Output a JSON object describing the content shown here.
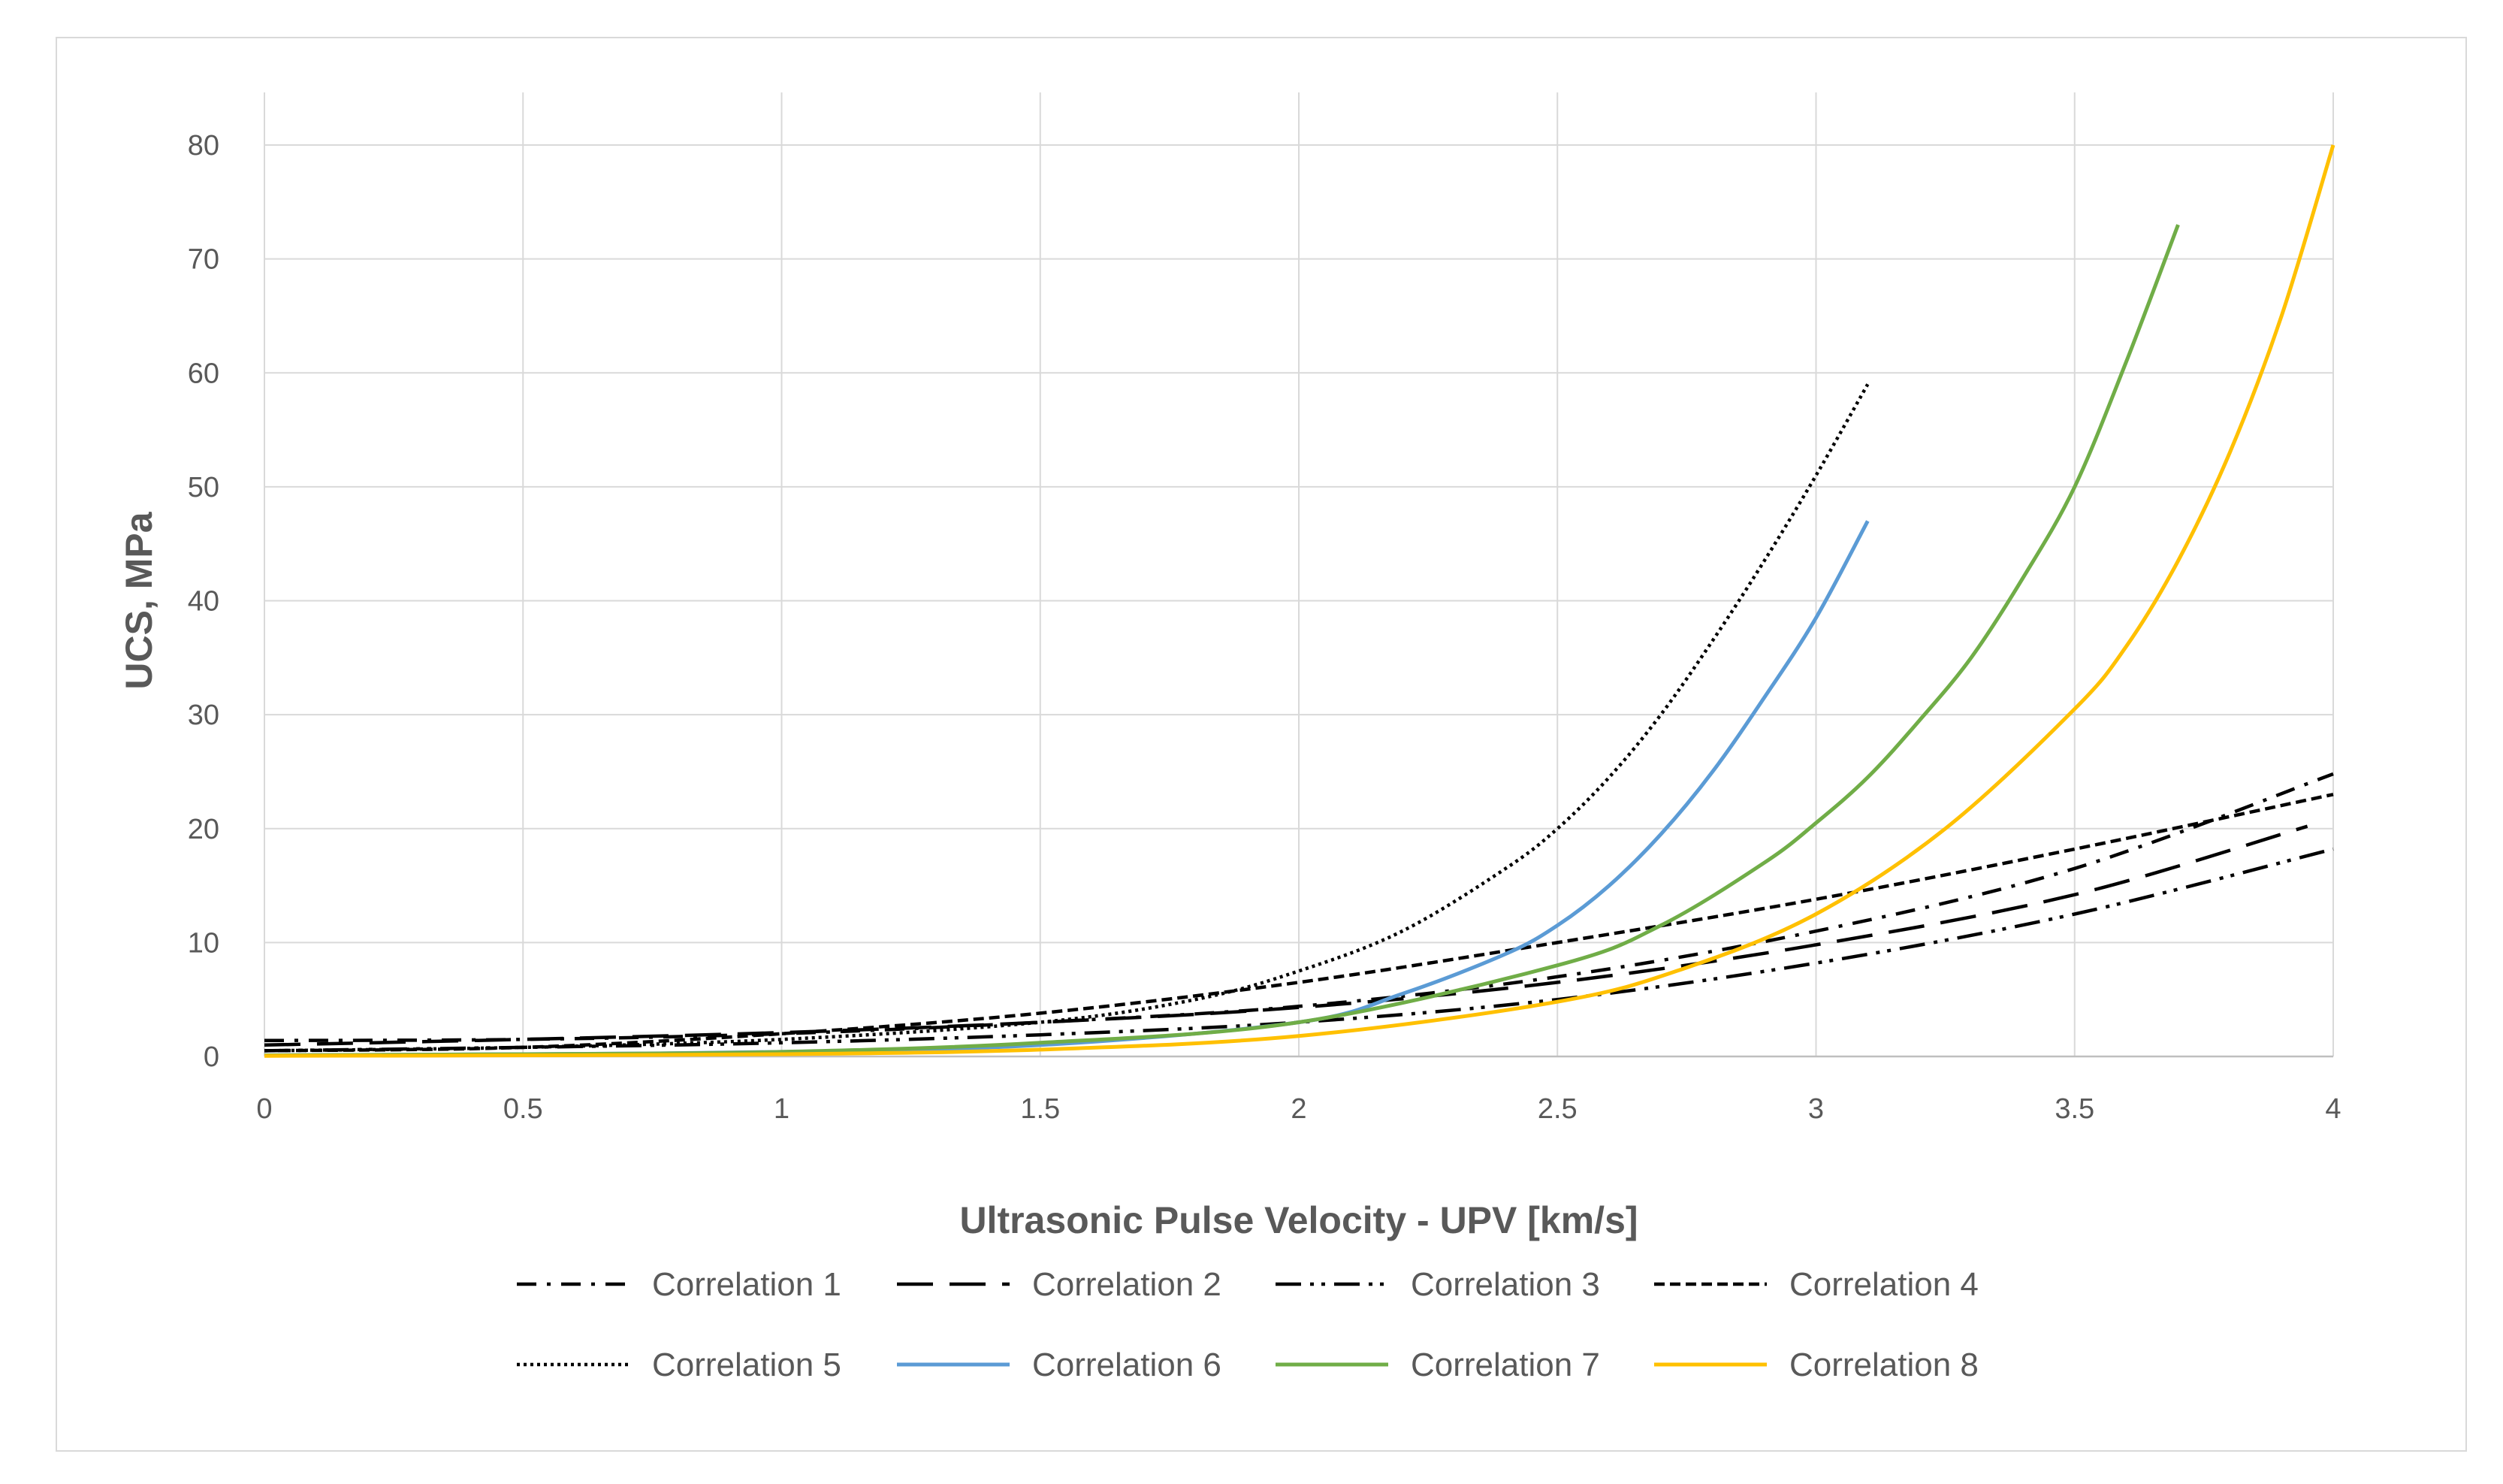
{
  "chart_data": {
    "type": "line",
    "title": "",
    "xlabel": "Ultrasonic Pulse Velocity - UPV [km/s]",
    "ylabel": "UCS, MPa",
    "xlim": [
      0,
      4
    ],
    "ylim": [
      0,
      80
    ],
    "x_ticks": [
      0,
      0.5,
      1,
      1.5,
      2,
      2.5,
      3,
      3.5,
      4
    ],
    "x_tick_labels": [
      "0",
      "0.5",
      "1",
      "1.5",
      "2",
      "2.5",
      "3",
      "3.5",
      "4"
    ],
    "y_ticks": [
      0,
      10,
      20,
      30,
      40,
      50,
      60,
      70,
      80
    ],
    "y_tick_labels": [
      "0",
      "10",
      "20",
      "30",
      "40",
      "50",
      "60",
      "70",
      "80"
    ],
    "grid": true,
    "legend_position": "bottom",
    "series": [
      {
        "name": "Correlation 1",
        "color": "#000000",
        "dash": "dash-dot",
        "x": [
          0,
          0.5,
          1,
          1.5,
          2,
          2.5,
          3,
          3.5,
          4
        ],
        "y": [
          1.4,
          1.5,
          2.0,
          3.0,
          4.4,
          7.0,
          11.0,
          16.5,
          24.8
        ]
      },
      {
        "name": "Correlation 2",
        "color": "#000000",
        "dash": "long-dash",
        "x": [
          0,
          0.5,
          1,
          1.5,
          2,
          2.5,
          3,
          3.5,
          3.95
        ],
        "y": [
          1.0,
          1.5,
          2.1,
          3.0,
          4.3,
          6.5,
          9.8,
          14.2,
          20.2
        ]
      },
      {
        "name": "Correlation 3",
        "color": "#000000",
        "dash": "dash-dot-dot",
        "x": [
          0,
          0.5,
          1,
          1.5,
          2,
          2.5,
          3,
          3.5,
          4
        ],
        "y": [
          0.5,
          0.8,
          1.2,
          1.9,
          3.0,
          5.0,
          8.2,
          12.5,
          18.2
        ]
      },
      {
        "name": "Correlation 4",
        "color": "#000000",
        "dash": "short-dash",
        "x": [
          0,
          0.5,
          1,
          1.5,
          2,
          2.5,
          3,
          3.5,
          4
        ],
        "y": [
          0.5,
          0.8,
          2.0,
          3.8,
          6.5,
          10.0,
          13.8,
          18.2,
          23.0
        ]
      },
      {
        "name": "Correlation 5",
        "color": "#000000",
        "dash": "dot",
        "x": [
          0,
          0.5,
          1,
          1.5,
          1.8,
          2,
          2.2,
          2.4,
          2.5,
          2.6,
          2.7,
          2.8,
          2.9,
          3.0,
          3.1
        ],
        "y": [
          0.5,
          0.8,
          1.5,
          3.0,
          5.0,
          7.5,
          11.0,
          16.5,
          20.0,
          24.5,
          30.0,
          36.5,
          43.5,
          51.0,
          59.0
        ]
      },
      {
        "name": "Correlation 6",
        "color": "#5b9bd5",
        "dash": "solid",
        "x": [
          0,
          0.5,
          1,
          1.5,
          2,
          2.2,
          2.4,
          2.5,
          2.6,
          2.7,
          2.8,
          2.9,
          3.0,
          3.1
        ],
        "y": [
          0.1,
          0.2,
          0.4,
          1.0,
          3.0,
          5.5,
          9.0,
          11.5,
          15.0,
          19.5,
          25.0,
          31.5,
          38.5,
          47.0
        ]
      },
      {
        "name": "Correlation 7",
        "color": "#70ad47",
        "dash": "solid",
        "x": [
          0,
          0.5,
          1,
          1.5,
          2,
          2.5,
          2.7,
          2.9,
          3.0,
          3.1,
          3.2,
          3.3,
          3.4,
          3.5,
          3.6,
          3.7
        ],
        "y": [
          0.1,
          0.2,
          0.4,
          1.2,
          3.0,
          8.0,
          11.5,
          17.0,
          20.5,
          24.5,
          29.5,
          35.0,
          42.0,
          50.0,
          61.0,
          73.0
        ]
      },
      {
        "name": "Correlation 8",
        "color": "#ffc000",
        "dash": "solid",
        "x": [
          0,
          0.5,
          1,
          1.5,
          2,
          2.5,
          2.75,
          3.0,
          3.25,
          3.5,
          3.6,
          3.7,
          3.8,
          3.9,
          4.0
        ],
        "y": [
          0.05,
          0.1,
          0.2,
          0.6,
          1.8,
          4.8,
          7.8,
          12.5,
          20.0,
          30.5,
          36.0,
          43.5,
          53.0,
          65.0,
          80.0
        ]
      }
    ]
  }
}
